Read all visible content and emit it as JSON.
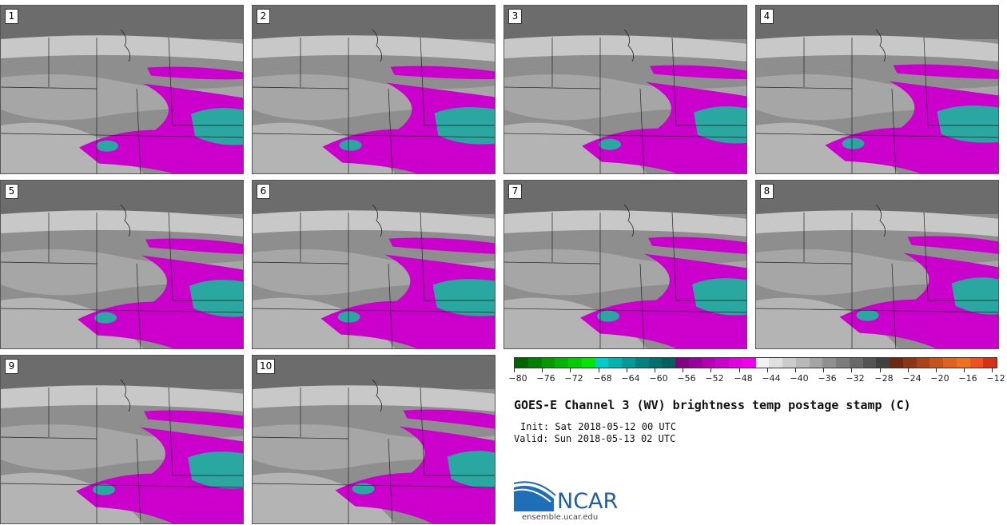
{
  "panels": [
    "1",
    "2",
    "3",
    "4",
    "5",
    "6",
    "7",
    "8",
    "9",
    "10"
  ],
  "colorbar": {
    "colors": [
      "#006400",
      "#007f00",
      "#009900",
      "#00b300",
      "#00cc00",
      "#00e600",
      "#00cccc",
      "#00b3b3",
      "#009a9a",
      "#008080",
      "#006f6f",
      "#005f5f",
      "#800080",
      "#990099",
      "#b300b3",
      "#cc00cc",
      "#e000e0",
      "#f000f0",
      "#f2f2f2",
      "#e0e0e0",
      "#cccccc",
      "#b8b8b8",
      "#a4a4a4",
      "#909090",
      "#7c7c7c",
      "#686868",
      "#545454",
      "#404040",
      "#6b2a0f",
      "#8a3513",
      "#a84418",
      "#c8521c",
      "#e0621e",
      "#f07020",
      "#f05020",
      "#d83018"
    ],
    "ticks": [
      "−80",
      "−76",
      "−72",
      "−68",
      "−64",
      "−60",
      "−56",
      "−52",
      "−48",
      "−44",
      "−40",
      "−36",
      "−32",
      "−28",
      "−24",
      "−20",
      "−16",
      "−12"
    ]
  },
  "title": "GOES-E Channel 3 (WV) brightness temp postage stamp (C)",
  "init": "Init: Sat 2018-05-12 00 UTC",
  "valid": "Valid: Sun 2018-05-13 02 UTC",
  "logo": {
    "name": "NCAR",
    "url": "ensemble.ucar.edu"
  },
  "colors": {
    "background_gray": "#8a8a8a",
    "magenta": "#cc00cc",
    "teal": "#2aa7a0"
  }
}
